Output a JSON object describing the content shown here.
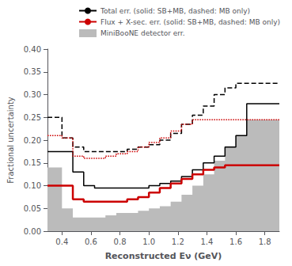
{
  "chart_data": {
    "type": "step",
    "xlabel": "Reconstructed Eν (GeV)",
    "ylabel": "Fractional uncertainty",
    "xlim": [
      0.3,
      1.9
    ],
    "ylim": [
      0,
      0.4
    ],
    "xticks": [
      0.4,
      0.6,
      0.8,
      {
        "value": 1.0,
        "label": "1.0"
      },
      1.2,
      1.4,
      1.6,
      1.8
    ],
    "yticks": [
      {
        "value": 0,
        "label": "0.00"
      },
      0.05,
      {
        "value": 0.1,
        "label": "0.10"
      },
      0.15,
      {
        "value": 0.2,
        "label": "0.20"
      },
      0.25,
      {
        "value": 0.3,
        "label": "0.30"
      },
      0.35,
      {
        "value": 0.4,
        "label": "0.40"
      }
    ],
    "bins": [
      0.3,
      0.4,
      0.475,
      0.55,
      0.625,
      0.7,
      0.775,
      0.85,
      0.925,
      1.0,
      1.075,
      1.15,
      1.225,
      1.3,
      1.375,
      1.45,
      1.525,
      1.6,
      1.675,
      1.75,
      1.9
    ],
    "series": [
      {
        "name": "Total err. (solid: SB+MB, dashed: MB only)",
        "color": "#000000",
        "line_style": "solid",
        "values": [
          0.175,
          0.175,
          0.13,
          0.1,
          0.095,
          0.095,
          0.095,
          0.095,
          0.095,
          0.1,
          0.105,
          0.11,
          0.12,
          0.135,
          0.15,
          0.165,
          0.185,
          0.21,
          0.28,
          0.28
        ]
      },
      {
        "color": "#000000",
        "line_style": "dashed",
        "values": [
          0.25,
          0.205,
          0.185,
          0.175,
          0.175,
          0.175,
          0.175,
          0.18,
          0.185,
          0.19,
          0.2,
          0.215,
          0.235,
          0.255,
          0.275,
          0.3,
          0.315,
          0.325,
          0.325,
          0.325
        ]
      },
      {
        "name": "Flux + X-sec. err. (solid: SB+MB, dashed: MB only)",
        "color": "#cc0000",
        "line_style": "solid",
        "values": [
          0.1,
          0.1,
          0.07,
          0.065,
          0.065,
          0.065,
          0.065,
          0.07,
          0.075,
          0.085,
          0.095,
          0.105,
          0.115,
          0.125,
          0.135,
          0.14,
          0.145,
          0.145,
          0.145,
          0.145
        ]
      },
      {
        "color": "#cc0000",
        "line_style": "dotted",
        "values": [
          0.21,
          0.205,
          0.165,
          0.16,
          0.16,
          0.165,
          0.17,
          0.175,
          0.185,
          0.195,
          0.205,
          0.22,
          0.235,
          0.245,
          0.245,
          0.245,
          0.245,
          0.245,
          0.245,
          0.245
        ]
      },
      {
        "name": "MiniBooNE detector err.",
        "color": "#bbbbbb",
        "type": "area",
        "values": [
          0.14,
          0.05,
          0.03,
          0.03,
          0.03,
          0.035,
          0.04,
          0.04,
          0.045,
          0.05,
          0.055,
          0.065,
          0.08,
          0.1,
          0.125,
          0.155,
          0.185,
          0.21,
          0.245,
          0.245
        ]
      }
    ],
    "grid": false,
    "legend": "upper right"
  }
}
